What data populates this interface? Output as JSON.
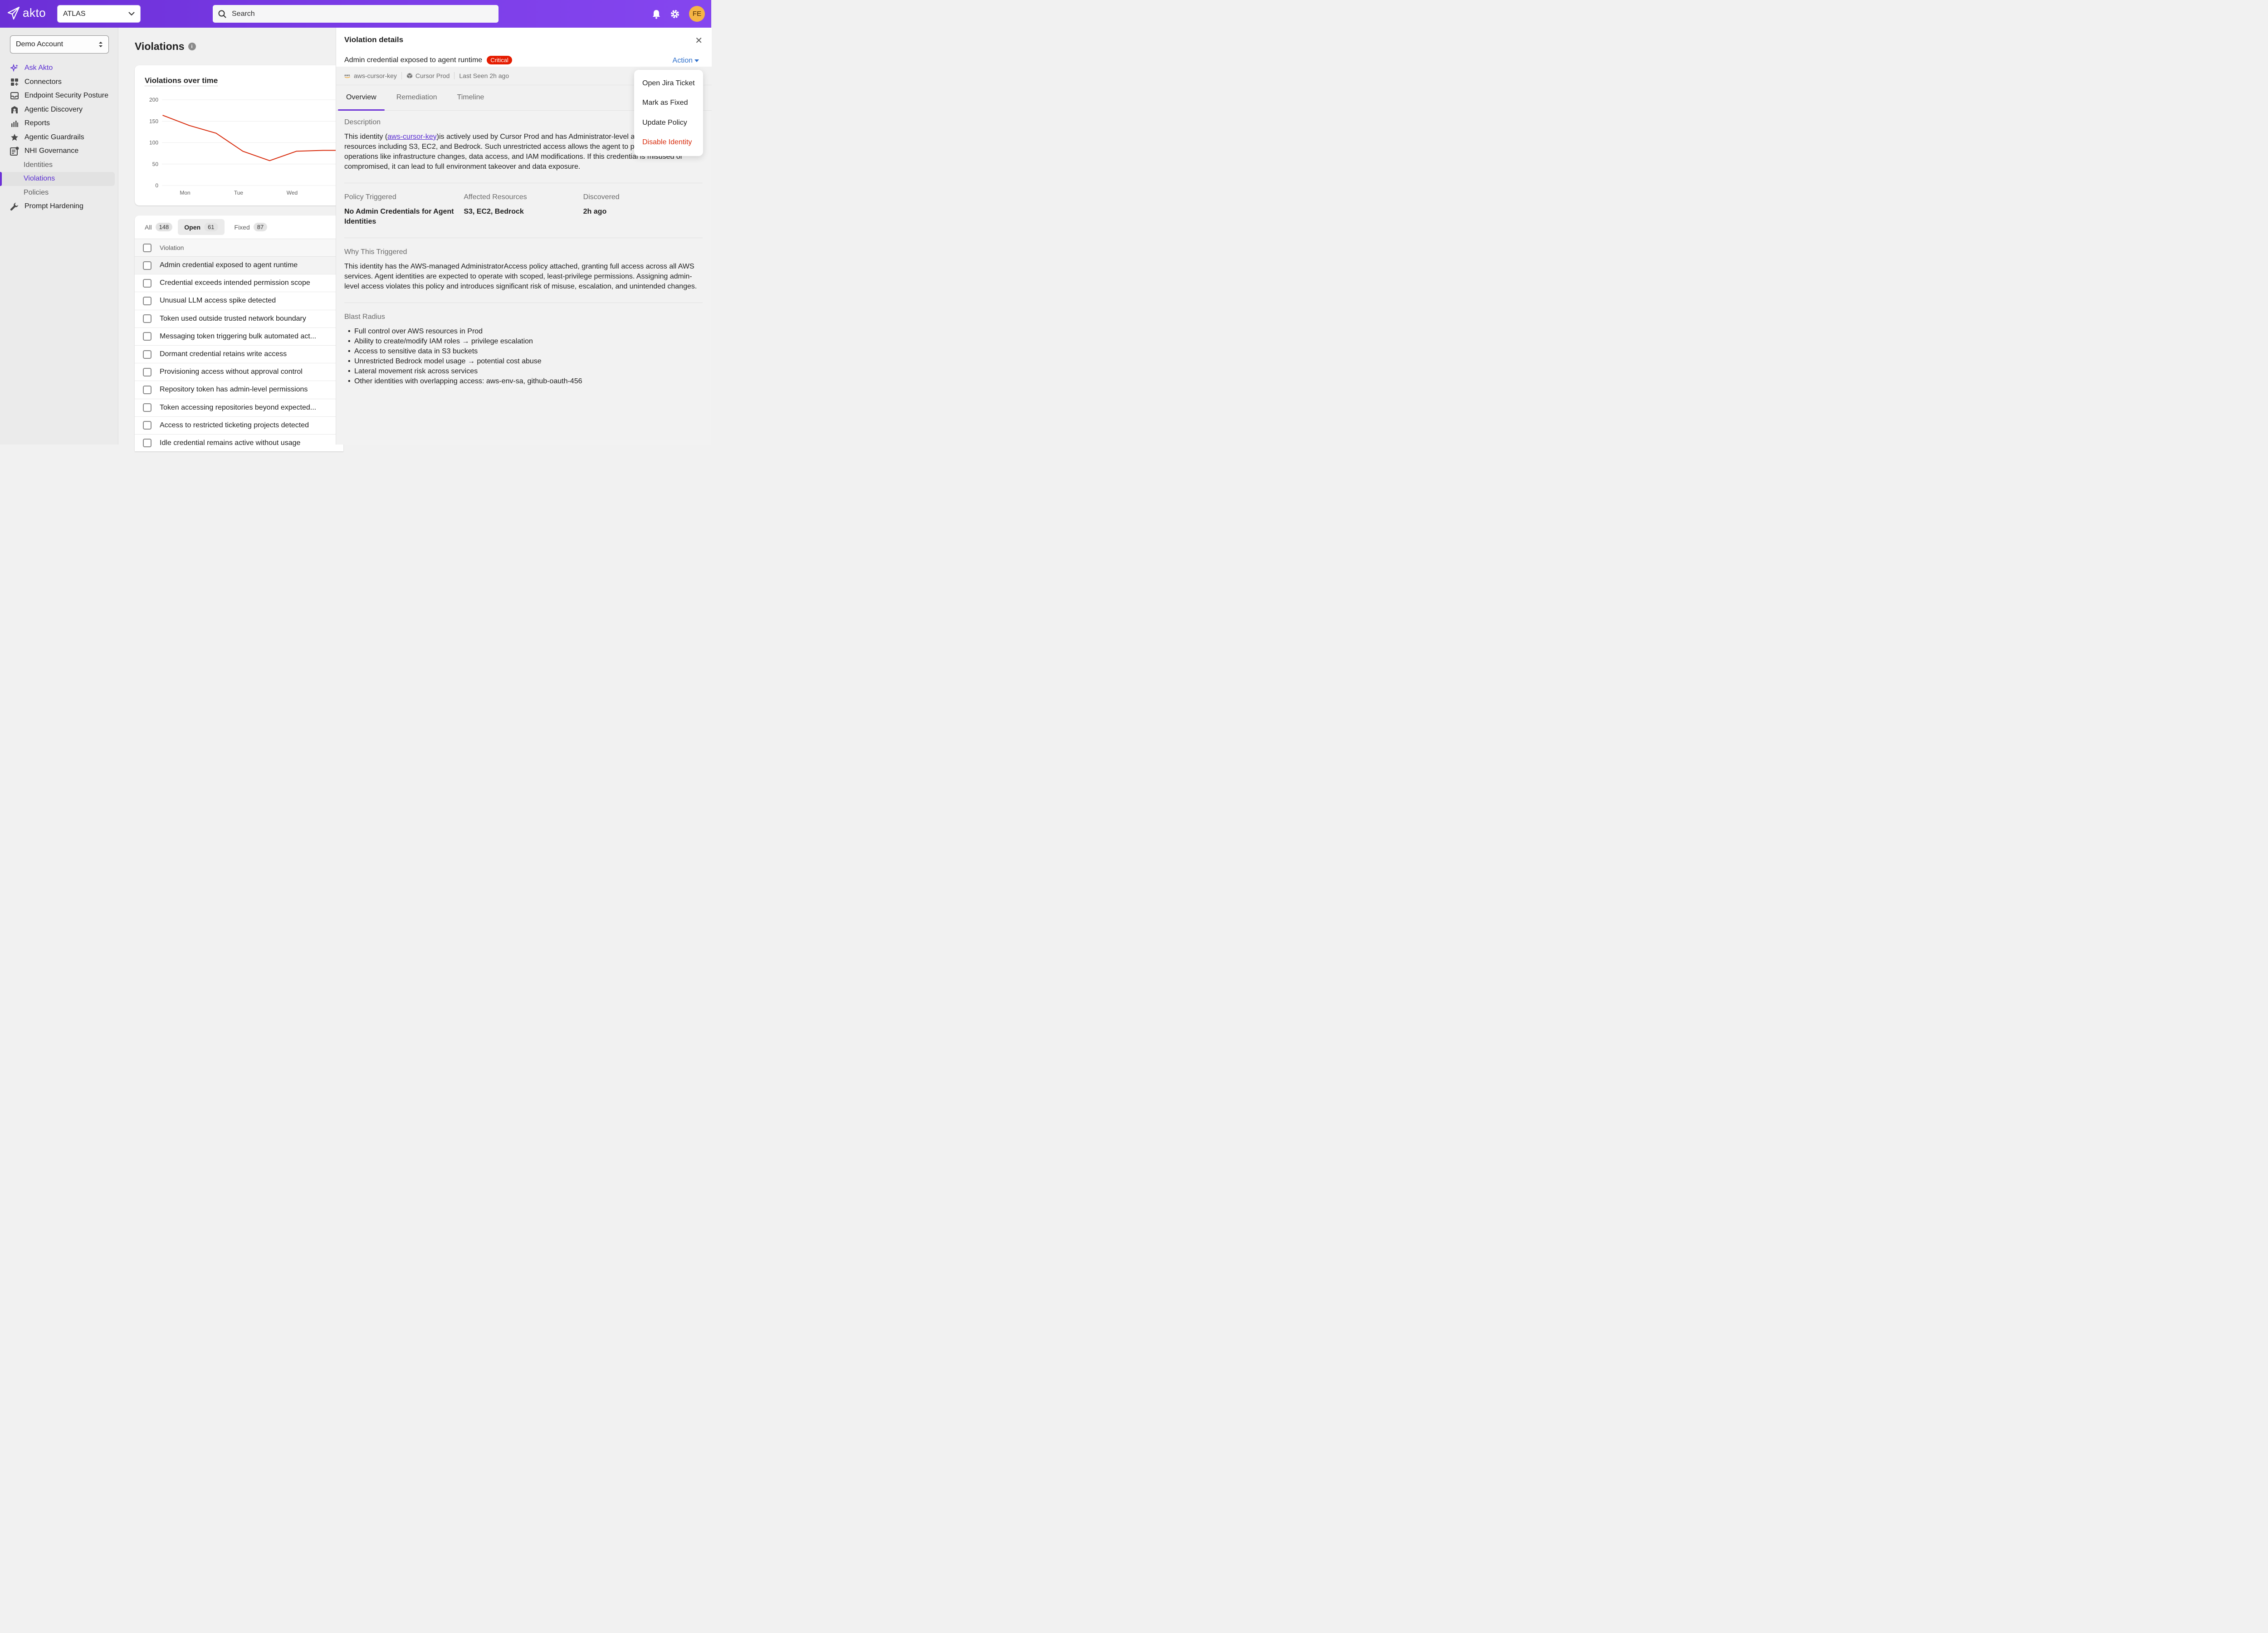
{
  "header": {
    "logo_text": "akto",
    "org": "ATLAS",
    "search_placeholder": "Search",
    "avatar_initials": "FE"
  },
  "sidebar": {
    "account": "Demo Account",
    "items": [
      {
        "label": "Ask Akto",
        "icon": "sparkle-icon"
      },
      {
        "label": "Connectors",
        "icon": "connectors-icon"
      },
      {
        "label": "Endpoint Security Posture",
        "icon": "endpoint-icon"
      },
      {
        "label": "Agentic Discovery",
        "icon": "discovery-icon"
      },
      {
        "label": "Reports",
        "icon": "reports-icon"
      },
      {
        "label": "Agentic Guardrails",
        "icon": "star-icon"
      },
      {
        "label": "NHI Governance",
        "icon": "governance-icon"
      },
      {
        "label": "Identities"
      },
      {
        "label": "Violations"
      },
      {
        "label": "Policies"
      },
      {
        "label": "Prompt Hardening",
        "icon": "wrench-icon"
      }
    ]
  },
  "main": {
    "title": "Violations",
    "chart_title": "Violations over time",
    "tabs": [
      {
        "label": "All",
        "count": "148"
      },
      {
        "label": "Open",
        "count": "61"
      },
      {
        "label": "Fixed",
        "count": "87"
      }
    ],
    "column_header": "Violation",
    "rows": [
      "Admin credential exposed to agent runtime",
      "Credential exceeds intended permission scope",
      "Unusual LLM access spike detected",
      "Token used outside trusted network boundary",
      "Messaging token triggering bulk automated act...",
      "Dormant credential retains write access",
      "Provisioning access without approval control",
      "Repository token has admin-level permissions",
      "Token accessing repositories beyond expected...",
      "Access to restricted ticketing projects detected",
      "Idle credential remains active without usage"
    ]
  },
  "chart_data": {
    "type": "line",
    "title": "Violations over time",
    "categories": [
      "Mon",
      "Tue",
      "Wed"
    ],
    "x": [
      0,
      0.5,
      1,
      1.5,
      2,
      2.5,
      3,
      3.3
    ],
    "values": [
      164,
      140,
      122,
      80,
      58,
      80,
      82,
      82
    ],
    "yticks": [
      0,
      50,
      100,
      150,
      200
    ],
    "ylim": [
      0,
      200
    ],
    "color": "#d82c0d"
  },
  "panel": {
    "title": "Violation details",
    "violation_title": "Admin credential exposed to agent runtime",
    "severity": "Critical",
    "action_label": "Action",
    "meta": {
      "identity": "aws-cursor-key",
      "environment": "Cursor Prod",
      "last_seen": "Last Seen 2h ago"
    },
    "tabs": [
      "Overview",
      "Remediation",
      "Timeline"
    ],
    "description_label": "Description",
    "description_pre": "This identity (",
    "description_link": "aws-cursor-key",
    "description_post": ")is actively used by Cursor Prod and has Administrator-level access to AWS resources including S3, EC2, and Bedrock. Such unrestricted access allows the agent to perform sensitive operations like infrastructure changes, data access, and IAM modifications. If this credential is misused or compromised, it can lead to full environment takeover and data exposure.",
    "policy_label": "Policy Triggered",
    "policy_value": "No Admin Credentials for Agent Identities",
    "resources_label": "Affected Resources",
    "resources_value": "S3, EC2, Bedrock",
    "discovered_label": "Discovered",
    "discovered_value": "2h ago",
    "why_label": "Why This Triggered",
    "why_text": "This identity has the AWS-managed AdministratorAccess policy attached, granting full access across all AWS services. Agent identities are expected to operate with scoped, least-privilege permissions. Assigning admin-level access violates this policy and introduces significant risk of misuse, escalation, and unintended changes.",
    "blast_label": "Blast Radius",
    "blast_items": [
      "Full control over AWS resources in Prod",
      "Ability to create/modify IAM roles → privilege escalation",
      "Access to sensitive data in S3 buckets",
      "Unrestricted Bedrock model usage → potential cost abuse",
      "Lateral movement risk across services",
      "Other identities with overlapping access: aws-env-sa, github-oauth-456"
    ]
  },
  "action_menu": {
    "items": [
      "Open Jira Ticket",
      "Mark as Fixed",
      "Update Policy",
      "Disable Identity"
    ]
  }
}
